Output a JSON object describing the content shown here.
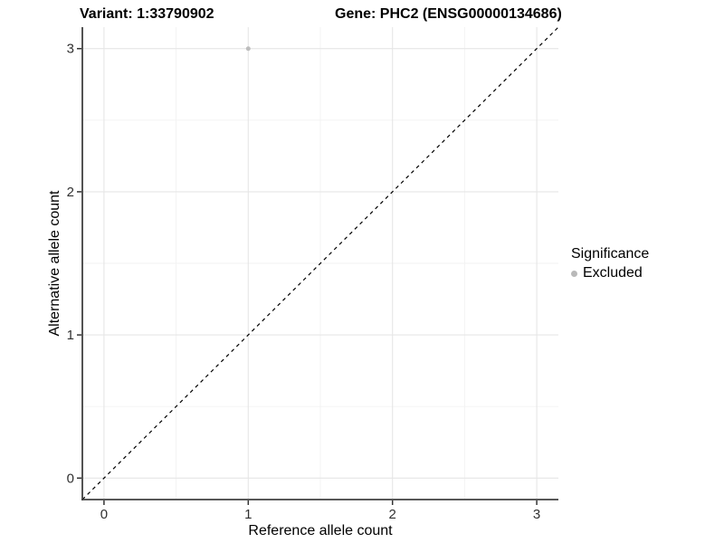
{
  "titles": {
    "variant": "Variant: 1:33790902",
    "gene": "Gene: PHC2 (ENSG00000134686)"
  },
  "axes": {
    "x_label": "Reference allele count",
    "y_label": "Alternative allele count"
  },
  "legend": {
    "title": "Significance",
    "items": [
      {
        "label": "Excluded",
        "color": "#b9b9b9"
      }
    ],
    "position": "right"
  },
  "colors": {
    "axis_line": "#404040",
    "tick_mark": "#333333",
    "grid_major": "#e6e6e6",
    "grid_minor": "#f2f2f2",
    "reference_line": "#000000",
    "point_excluded": "#bdbdbd",
    "background": "#ffffff"
  },
  "chart_data": {
    "type": "scatter",
    "title": "Variant: 1:33790902    Gene: PHC2 (ENSG00000134686)",
    "xlabel": "Reference allele count",
    "ylabel": "Alternative allele count",
    "xlim": [
      -0.15,
      3.15
    ],
    "ylim": [
      -0.15,
      3.15
    ],
    "x_ticks": [
      0,
      1,
      2,
      3
    ],
    "y_ticks": [
      0,
      1,
      2,
      3
    ],
    "x_minor_ticks": [
      0.5,
      1.5,
      2.5
    ],
    "y_minor_ticks": [
      0.5,
      1.5,
      2.5
    ],
    "grid": true,
    "legend_position": "right",
    "series": [
      {
        "name": "Excluded",
        "color": "#bdbdbd",
        "points": [
          {
            "x": 1,
            "y": 3
          }
        ]
      }
    ],
    "reference_line": {
      "slope": 1,
      "intercept": 0,
      "style": "dashed",
      "color": "#000000"
    }
  }
}
